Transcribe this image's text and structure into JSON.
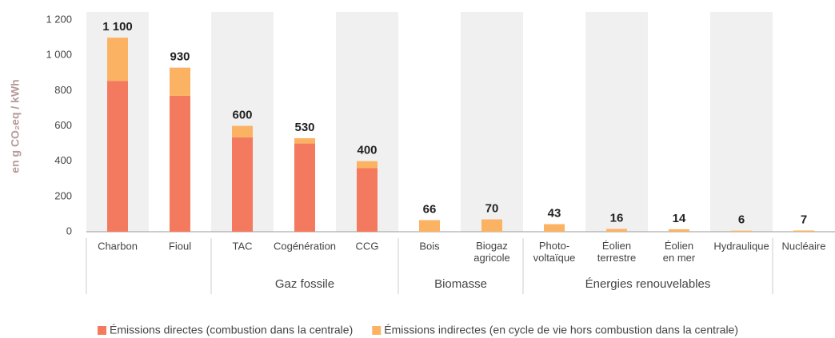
{
  "chart_data": {
    "type": "stacked_bar",
    "y_label": "en g CO₂eq / kWh",
    "categories": [
      "Charbon",
      "Fioul",
      "TAC",
      "Cogénération",
      "CCG",
      "Bois",
      "Biogaz\nagricole",
      "Photo-\nvoltaïque",
      "Éolien\nterrestre",
      "Éolien\nen mer",
      "Hydraulique",
      "Nucléaire"
    ],
    "series": [
      {
        "name": "Émissions directes (combustion dans la centrale)",
        "color": "#f47a5f",
        "values": [
          855,
          770,
          535,
          500,
          360,
          0,
          0,
          0,
          0,
          0,
          0,
          0
        ]
      },
      {
        "name": "Émissions indirectes (en cycle de vie hors combustion dans la centrale)",
        "color": "#fbb363",
        "values": [
          245,
          160,
          65,
          30,
          40,
          66,
          70,
          43,
          16,
          14,
          6,
          7
        ]
      }
    ],
    "totals": [
      1100,
      930,
      600,
      530,
      400,
      66,
      70,
      43,
      16,
      14,
      6,
      7
    ],
    "total_labels": [
      "1 100",
      "930",
      "600",
      "530",
      "400",
      "66",
      "70",
      "43",
      "16",
      "14",
      "6",
      "7"
    ],
    "groups": [
      {
        "label": "Gaz fossile",
        "start": 2,
        "end": 4
      },
      {
        "label": "Biomasse",
        "start": 5,
        "end": 6
      },
      {
        "label": "Énergies renouvelables",
        "start": 7,
        "end": 10
      }
    ],
    "ylim": [
      0,
      1200
    ],
    "yticks": [
      0,
      200,
      400,
      600,
      800,
      {
        "value": 1000,
        "label": "1 000"
      },
      {
        "value": 1200,
        "label": "1 200"
      }
    ],
    "legend": "bottom"
  }
}
